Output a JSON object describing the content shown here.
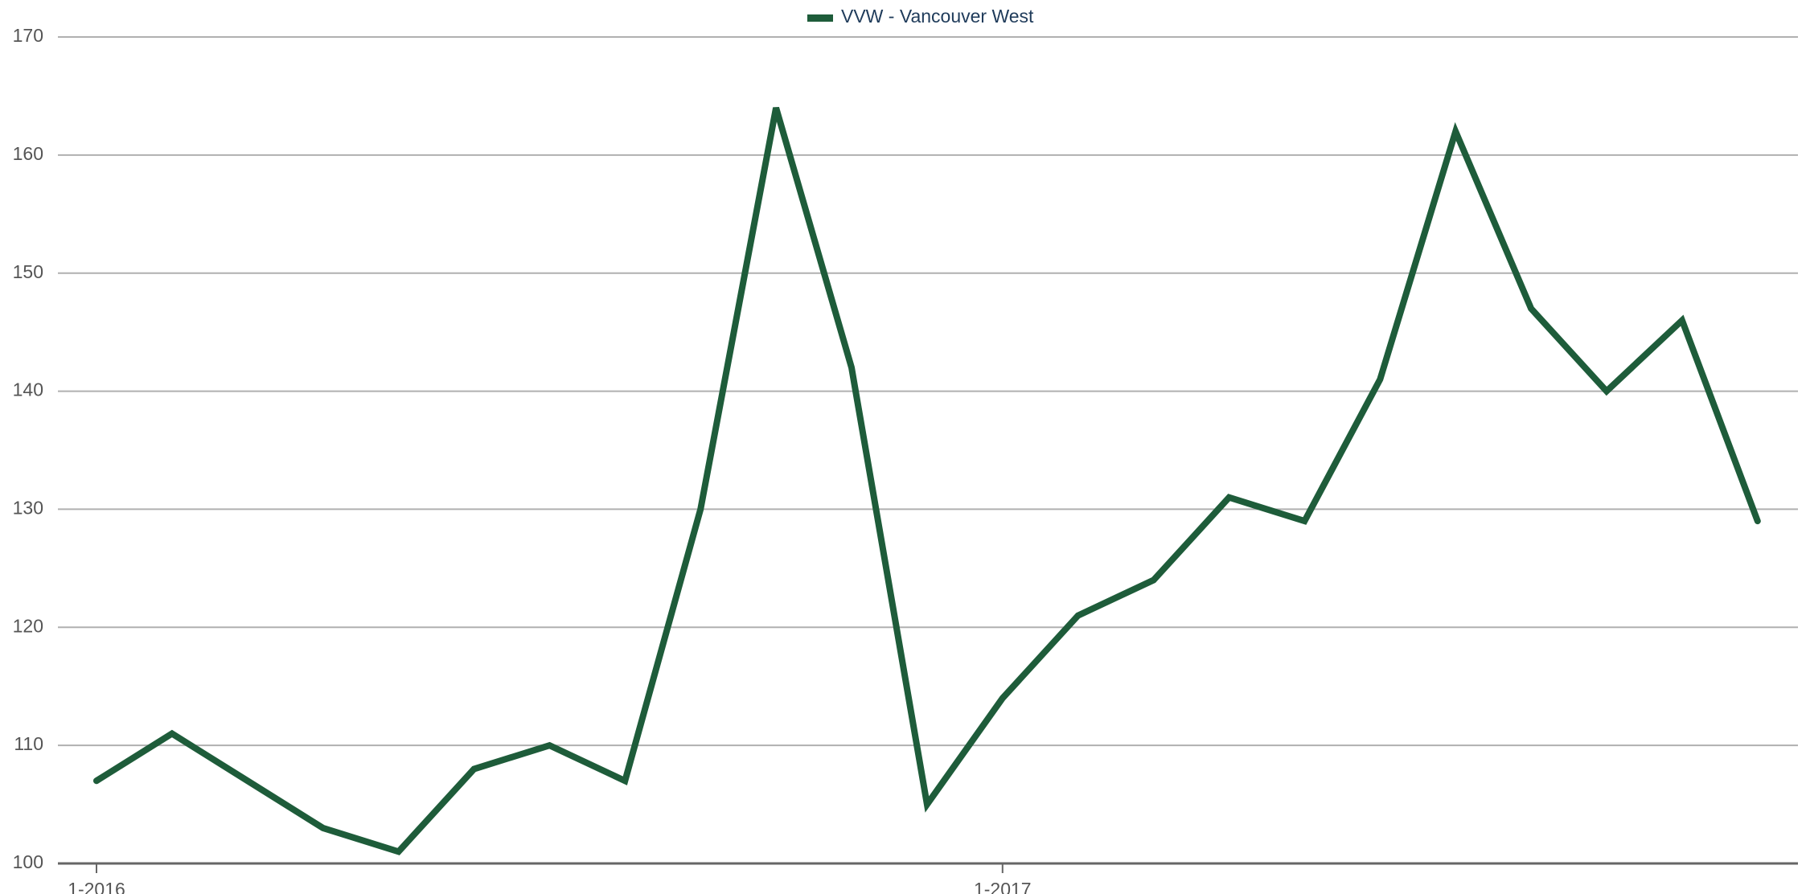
{
  "chart_data": {
    "type": "line",
    "categories": [
      "1-2016",
      null,
      null,
      null,
      null,
      null,
      null,
      null,
      null,
      null,
      null,
      null,
      "1-2017",
      null,
      null,
      null,
      null,
      null,
      null,
      null,
      null,
      null,
      null
    ],
    "series": [
      {
        "name": "VVW - Vancouver West",
        "color": "#1e5c3a",
        "values": [
          107,
          111,
          107,
          103,
          101,
          108,
          110,
          107,
          130,
          164,
          142,
          105,
          114,
          121,
          124,
          131,
          129,
          141,
          162,
          147,
          140,
          146,
          129
        ]
      }
    ],
    "ylim": [
      100,
      170
    ],
    "yticks": [
      100,
      110,
      120,
      130,
      140,
      150,
      160,
      170
    ],
    "grid": true,
    "legend": "top"
  }
}
